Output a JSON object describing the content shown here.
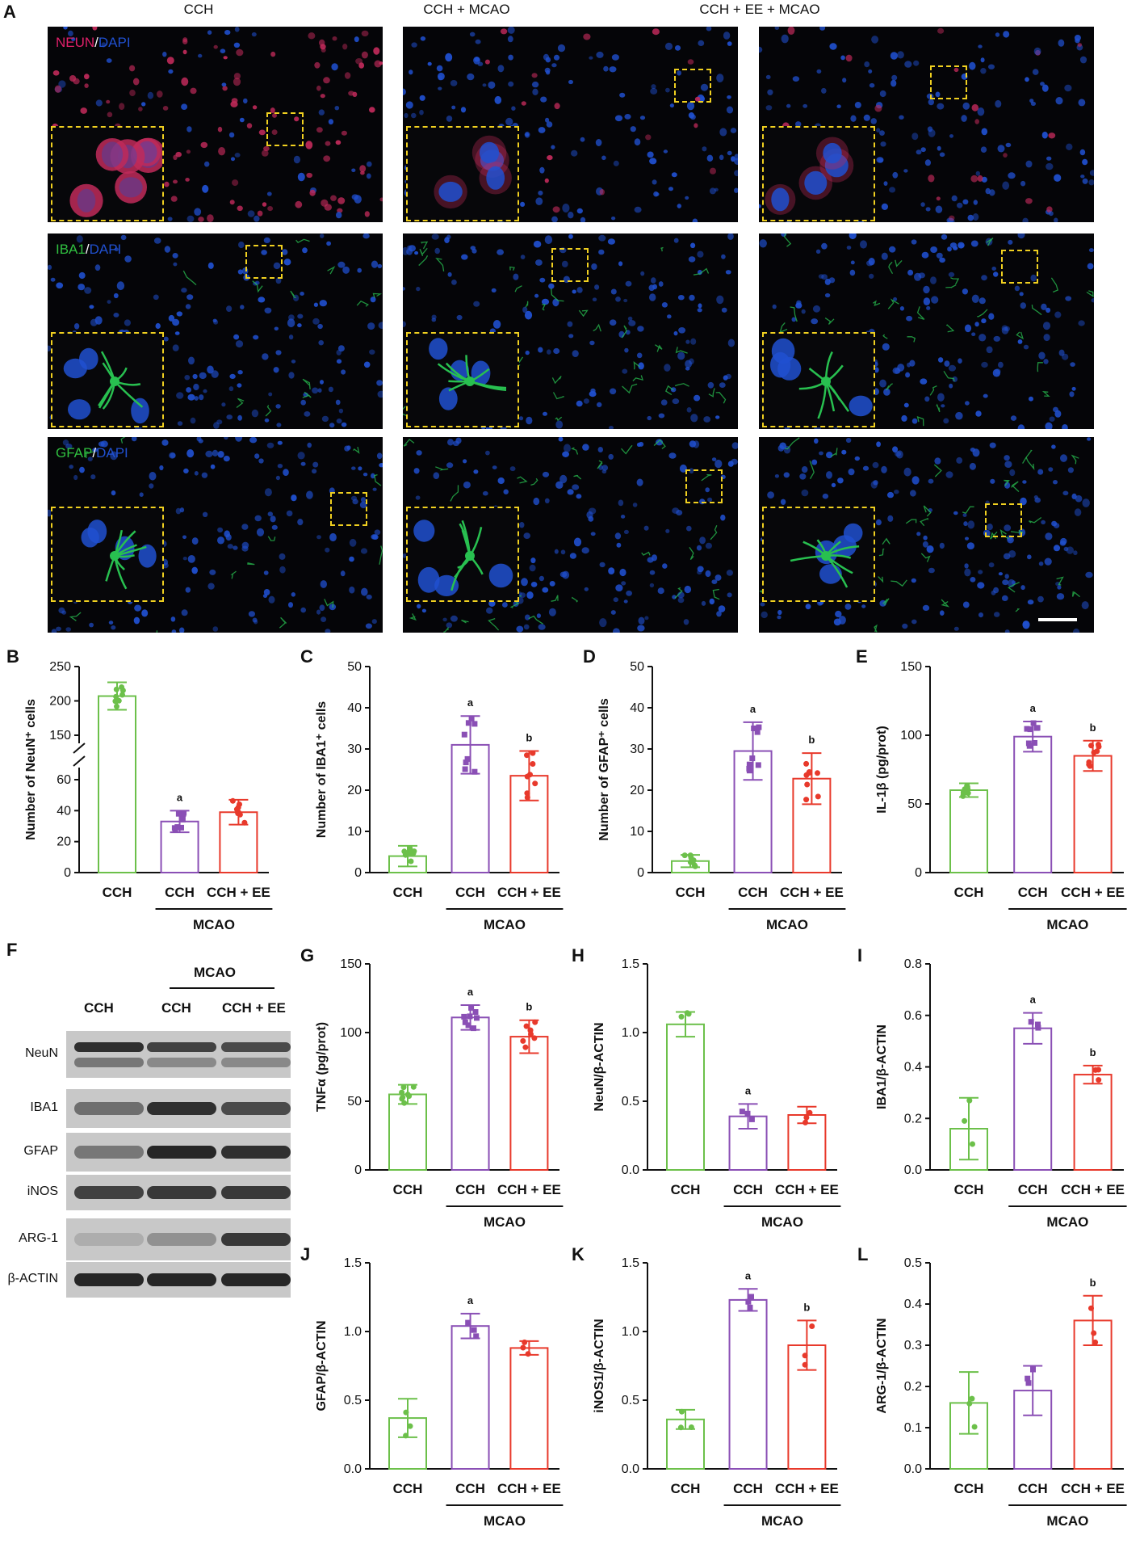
{
  "panel_letters": {
    "A": "A",
    "B": "B",
    "C": "C",
    "D": "D",
    "E": "E",
    "F": "F",
    "G": "G",
    "H": "H",
    "I": "I",
    "J": "J",
    "K": "K",
    "L": "L"
  },
  "panel_a": {
    "columns": [
      "CCH",
      "CCH + MCAO",
      "CCH + EE + MCAO"
    ],
    "rows": [
      {
        "marker": "NEUN",
        "sep": "/",
        "dapi": "DAPI",
        "marker_color": "#e0206a",
        "cell_color": "#c02a5a"
      },
      {
        "marker": "IBA1",
        "sep": "/",
        "dapi": "DAPI",
        "marker_color": "#30c040",
        "cell_color": "#28c050"
      },
      {
        "marker": "GFAP",
        "sep": "/",
        "dapi": "DAPI",
        "marker_color": "#30c040",
        "cell_color": "#28c050"
      }
    ],
    "dapi_color": "#2050d0",
    "inset_border_color": "#f0d020"
  },
  "western_blot": {
    "group_label": "MCAO",
    "lane_labels": [
      "CCH",
      "CCH",
      "CCH + EE"
    ],
    "bands": [
      "NeuN",
      "IBA1",
      "GFAP",
      "iNOS",
      "ARG-1",
      "β-ACTIN"
    ]
  },
  "colors": {
    "CCH": "#6cc04a",
    "CCH_MCAO": "#8a4fb5",
    "CCH_EE_MCAO": "#e8392b"
  },
  "chart_data": [
    {
      "id": "B",
      "type": "bar",
      "xlabels": [
        "CCH",
        "CCH",
        "CCH + EE"
      ],
      "group": "MCAO",
      "ylabel": "Number of NeuN⁺ cells",
      "y_broken": true,
      "ylim_lower": [
        0,
        60
      ],
      "ylim_upper": [
        150,
        250
      ],
      "yticks_lower": [
        "0",
        "20",
        "40",
        "60"
      ],
      "yticks_upper": [
        "150",
        "200",
        "250"
      ],
      "values": [
        207,
        33,
        39
      ],
      "errors": [
        20,
        7,
        8
      ],
      "sig": [
        "",
        "a",
        ""
      ]
    },
    {
      "id": "C",
      "type": "bar",
      "xlabels": [
        "CCH",
        "CCH",
        "CCH + EE"
      ],
      "group": "MCAO",
      "ylabel": "Number of IBA1⁺ cells",
      "ylim": [
        0,
        50
      ],
      "yticks": [
        "0",
        "10",
        "20",
        "30",
        "40",
        "50"
      ],
      "values": [
        4,
        31,
        23.5
      ],
      "errors": [
        2.5,
        7,
        6
      ],
      "sig": [
        "",
        "a",
        "b"
      ]
    },
    {
      "id": "D",
      "type": "bar",
      "xlabels": [
        "CCH",
        "CCH",
        "CCH + EE"
      ],
      "group": "MCAO",
      "ylabel": "Number of GFAP⁺ cells",
      "ylim": [
        0,
        50
      ],
      "yticks": [
        "0",
        "10",
        "20",
        "30",
        "40",
        "50"
      ],
      "values": [
        2.8,
        29.5,
        22.8
      ],
      "errors": [
        1.5,
        7,
        6.2
      ],
      "sig": [
        "",
        "a",
        "b"
      ]
    },
    {
      "id": "E",
      "type": "bar",
      "xlabels": [
        "CCH",
        "CCH",
        "CCH + EE"
      ],
      "group": "MCAO",
      "ylabel": "IL-1β (pg/prot)",
      "ylim": [
        0,
        150
      ],
      "yticks": [
        "0",
        "50",
        "100",
        "150"
      ],
      "values": [
        60,
        99,
        85
      ],
      "errors": [
        5,
        11,
        11
      ],
      "sig": [
        "",
        "a",
        "b"
      ]
    },
    {
      "id": "G",
      "type": "bar",
      "xlabels": [
        "CCH",
        "CCH",
        "CCH + EE"
      ],
      "group": "MCAO",
      "ylabel": "TNFα (pg/prot)",
      "ylim": [
        0,
        150
      ],
      "yticks": [
        "0",
        "50",
        "100",
        "150"
      ],
      "values": [
        55,
        111,
        97
      ],
      "errors": [
        7,
        9,
        12
      ],
      "sig": [
        "",
        "a",
        "b"
      ]
    },
    {
      "id": "H",
      "type": "bar",
      "xlabels": [
        "CCH",
        "CCH",
        "CCH + EE"
      ],
      "group": "MCAO",
      "ylabel": "NeuN/β-ACTIN",
      "ylim": [
        0,
        1.5
      ],
      "yticks": [
        "0.0",
        "0.5",
        "1.0",
        "1.5"
      ],
      "values": [
        1.06,
        0.39,
        0.4
      ],
      "errors": [
        0.09,
        0.09,
        0.06
      ],
      "sig": [
        "",
        "a",
        ""
      ]
    },
    {
      "id": "I",
      "type": "bar",
      "xlabels": [
        "CCH",
        "CCH",
        "CCH + EE"
      ],
      "group": "MCAO",
      "ylabel": "IBA1/β-ACTIN",
      "ylim": [
        0,
        0.8
      ],
      "yticks": [
        "0.0",
        "0.2",
        "0.4",
        "0.6",
        "0.8"
      ],
      "values": [
        0.16,
        0.55,
        0.37
      ],
      "errors": [
        0.12,
        0.06,
        0.035
      ],
      "sig": [
        "",
        "a",
        "b"
      ]
    },
    {
      "id": "J",
      "type": "bar",
      "xlabels": [
        "CCH",
        "CCH",
        "CCH + EE"
      ],
      "group": "MCAO",
      "ylabel": "GFAP/β-ACTIN",
      "ylim": [
        0,
        1.5
      ],
      "yticks": [
        "0.0",
        "0.5",
        "1.0",
        "1.5"
      ],
      "values": [
        0.37,
        1.04,
        0.88
      ],
      "errors": [
        0.14,
        0.09,
        0.05
      ],
      "sig": [
        "",
        "a",
        ""
      ]
    },
    {
      "id": "K",
      "type": "bar",
      "xlabels": [
        "CCH",
        "CCH",
        "CCH + EE"
      ],
      "group": "MCAO",
      "ylabel": "iNOS1/β-ACTIN",
      "ylim": [
        0,
        1.5
      ],
      "yticks": [
        "0.0",
        "0.5",
        "1.0",
        "1.5"
      ],
      "values": [
        0.36,
        1.23,
        0.9
      ],
      "errors": [
        0.07,
        0.08,
        0.18
      ],
      "sig": [
        "",
        "a",
        "b"
      ]
    },
    {
      "id": "L",
      "type": "bar",
      "xlabels": [
        "CCH",
        "CCH",
        "CCH + EE"
      ],
      "group": "MCAO",
      "ylabel": "ARG-1/β-ACTIN",
      "ylim": [
        0,
        0.5
      ],
      "yticks": [
        "0.0",
        "0.1",
        "0.2",
        "0.3",
        "0.4",
        "0.5"
      ],
      "values": [
        0.16,
        0.19,
        0.36
      ],
      "errors": [
        0.075,
        0.06,
        0.06
      ],
      "sig": [
        "",
        "",
        "b"
      ]
    }
  ]
}
